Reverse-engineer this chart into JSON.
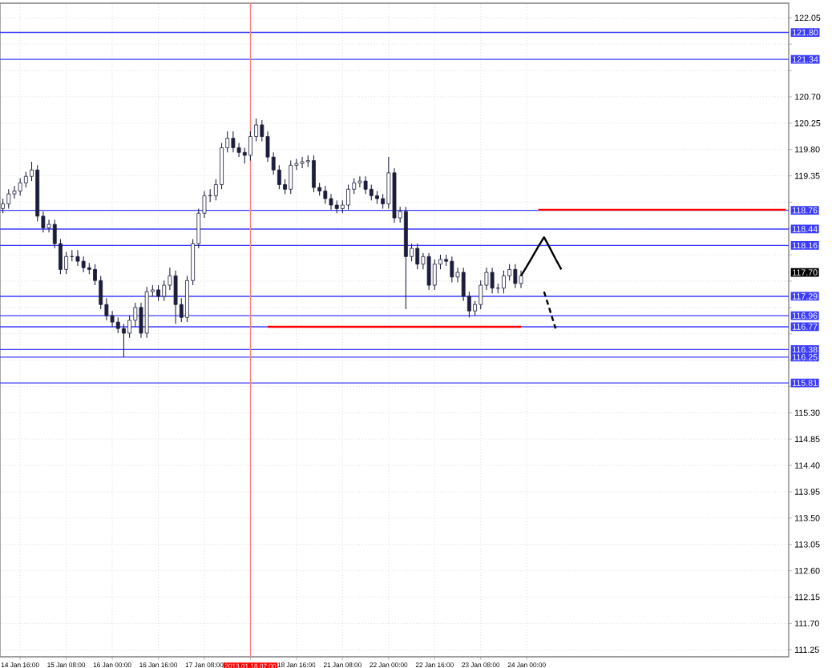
{
  "chart_data": {
    "type": "candlestick",
    "color": "#1c1c3c",
    "grid": true,
    "categories": [
      null,
      null,
      null,
      "14 Jan 16:00",
      null,
      null,
      null,
      null,
      null,
      null,
      null,
      "15 Jan 08:00",
      null,
      null,
      null,
      null,
      null,
      null,
      null,
      "16 Jan 00:00",
      null,
      null,
      null,
      null,
      null,
      null,
      null,
      "16 Jan 16:00",
      null,
      null,
      null,
      null,
      null,
      null,
      null,
      "17 Jan 08:00",
      null,
      null,
      null,
      null,
      null,
      null,
      null,
      "2013.01.18 07:00",
      null,
      null,
      null,
      null,
      null,
      null,
      null,
      "18 Jan 16:00",
      null,
      null,
      null,
      null,
      null,
      null,
      null,
      "21 Jan 08:00",
      null,
      null,
      null,
      null,
      null,
      null,
      null,
      "22 Jan 00:00",
      null,
      null,
      null,
      null,
      null,
      null,
      null,
      "22 Jan 16:00",
      null,
      null,
      null,
      null,
      null,
      null,
      null,
      "23 Jan 08:00",
      null,
      null,
      null,
      null,
      null,
      null,
      null,
      "24 Jan 00:00",
      null,
      null,
      null,
      null,
      null,
      null,
      null,
      null,
      null,
      null,
      null,
      null,
      null,
      null,
      null,
      null,
      null,
      null,
      null,
      null,
      null,
      null,
      null,
      null,
      null,
      null,
      null,
      null,
      null,
      null,
      null,
      null,
      null,
      null,
      null,
      null,
      null,
      null,
      null,
      null,
      null,
      null,
      null,
      null,
      null
    ],
    "ohlc": [
      [
        118.79,
        118.96,
        118.71,
        118.87
      ],
      [
        118.87,
        119.12,
        118.79,
        119.04
      ],
      [
        119.04,
        119.18,
        118.96,
        119.09
      ],
      [
        119.09,
        119.31,
        119.01,
        119.23
      ],
      [
        119.23,
        119.42,
        119.15,
        119.34
      ],
      [
        119.34,
        119.59,
        119.26,
        119.45
      ],
      [
        119.45,
        119.53,
        118.57,
        118.66
      ],
      [
        118.66,
        118.74,
        118.38,
        118.46
      ],
      [
        118.46,
        118.6,
        118.38,
        118.52
      ],
      [
        118.52,
        118.6,
        118.11,
        118.19
      ],
      [
        118.19,
        118.27,
        117.67,
        117.75
      ],
      [
        117.75,
        118.05,
        117.67,
        117.97
      ],
      [
        117.97,
        118.08,
        117.89,
        117.97
      ],
      [
        117.97,
        118.08,
        117.81,
        117.89
      ],
      [
        117.89,
        117.97,
        117.7,
        117.78
      ],
      [
        117.78,
        117.86,
        117.67,
        117.75
      ],
      [
        117.75,
        117.84,
        117.48,
        117.56
      ],
      [
        117.56,
        117.64,
        117.07,
        117.15
      ],
      [
        117.15,
        117.26,
        116.88,
        116.96
      ],
      [
        116.96,
        117.04,
        116.77,
        116.85
      ],
      [
        116.85,
        116.93,
        116.66,
        116.74
      ],
      [
        116.74,
        116.82,
        116.25,
        116.66
      ],
      [
        116.66,
        116.96,
        116.58,
        116.88
      ],
      [
        116.88,
        117.18,
        116.77,
        117.1
      ],
      [
        117.1,
        117.18,
        116.58,
        116.66
      ],
      [
        116.66,
        117.45,
        116.58,
        117.37
      ],
      [
        117.37,
        117.48,
        117.29,
        117.4
      ],
      [
        117.4,
        117.48,
        117.21,
        117.29
      ],
      [
        117.29,
        117.56,
        117.21,
        117.48
      ],
      [
        117.48,
        117.78,
        117.4,
        117.64
      ],
      [
        117.64,
        117.73,
        116.82,
        117.15
      ],
      [
        117.15,
        117.26,
        116.85,
        116.93
      ],
      [
        116.93,
        117.64,
        116.85,
        117.56
      ],
      [
        117.56,
        118.27,
        117.48,
        118.19
      ],
      [
        118.19,
        118.79,
        118.11,
        118.71
      ],
      [
        118.71,
        119.09,
        118.63,
        119.01
      ],
      [
        119.01,
        119.12,
        118.9,
        119.01
      ],
      [
        119.01,
        119.29,
        118.93,
        119.2
      ],
      [
        119.2,
        119.91,
        119.12,
        119.83
      ],
      [
        119.83,
        120.11,
        119.75,
        119.99
      ],
      [
        119.99,
        120.11,
        119.75,
        119.83
      ],
      [
        119.83,
        119.91,
        119.67,
        119.75
      ],
      [
        119.75,
        119.83,
        119.56,
        119.7
      ],
      [
        119.7,
        120.11,
        119.61,
        120.02
      ],
      [
        120.02,
        120.33,
        119.94,
        120.22
      ],
      [
        120.22,
        120.3,
        119.94,
        120.02
      ],
      [
        120.02,
        120.11,
        119.59,
        119.67
      ],
      [
        119.67,
        119.75,
        119.37,
        119.45
      ],
      [
        119.45,
        119.53,
        119.12,
        119.2
      ],
      [
        119.2,
        119.29,
        119.04,
        119.12
      ],
      [
        119.12,
        119.61,
        119.04,
        119.53
      ],
      [
        119.53,
        119.64,
        119.45,
        119.56
      ],
      [
        119.56,
        119.67,
        119.48,
        119.59
      ],
      [
        119.59,
        119.7,
        119.5,
        119.61
      ],
      [
        119.61,
        119.7,
        119.07,
        119.15
      ],
      [
        119.15,
        119.23,
        119.01,
        119.09
      ],
      [
        119.09,
        119.18,
        118.87,
        118.96
      ],
      [
        118.96,
        119.04,
        118.77,
        118.85
      ],
      [
        118.85,
        118.93,
        118.71,
        118.79
      ],
      [
        118.79,
        118.93,
        118.71,
        118.85
      ],
      [
        118.85,
        119.2,
        118.77,
        119.12
      ],
      [
        119.12,
        119.31,
        119.04,
        119.23
      ],
      [
        119.23,
        119.34,
        119.15,
        119.26
      ],
      [
        119.26,
        119.34,
        119.04,
        119.12
      ],
      [
        119.12,
        119.2,
        118.93,
        119.01
      ],
      [
        119.01,
        119.09,
        118.87,
        118.96
      ],
      [
        118.96,
        119.04,
        118.79,
        118.87
      ],
      [
        118.87,
        119.67,
        118.79,
        119.4
      ],
      [
        119.4,
        119.48,
        118.55,
        118.63
      ],
      [
        118.63,
        118.82,
        118.55,
        118.74
      ],
      [
        118.74,
        118.82,
        117.07,
        117.97
      ],
      [
        117.97,
        118.19,
        117.89,
        118.11
      ],
      [
        118.11,
        118.19,
        117.75,
        117.84
      ],
      [
        117.84,
        118.03,
        117.75,
        117.97
      ],
      [
        117.97,
        118.03,
        117.4,
        117.48
      ],
      [
        117.48,
        117.92,
        117.4,
        117.84
      ],
      [
        117.84,
        118.0,
        117.75,
        117.92
      ],
      [
        117.92,
        118.0,
        117.81,
        117.89
      ],
      [
        117.89,
        117.97,
        117.53,
        117.62
      ],
      [
        117.62,
        117.78,
        117.53,
        117.7
      ],
      [
        117.7,
        117.78,
        117.21,
        117.29
      ],
      [
        117.29,
        117.37,
        116.93,
        117.04
      ],
      [
        117.04,
        117.21,
        116.96,
        117.15
      ],
      [
        117.15,
        117.56,
        117.07,
        117.48
      ],
      [
        117.48,
        117.78,
        117.4,
        117.7
      ],
      [
        117.7,
        117.78,
        117.34,
        117.43
      ],
      [
        117.43,
        117.51,
        117.34,
        117.43
      ],
      [
        117.43,
        117.73,
        117.34,
        117.64
      ],
      [
        117.64,
        117.84,
        117.56,
        117.75
      ],
      [
        117.75,
        117.84,
        117.43,
        117.51
      ],
      [
        117.51,
        117.73,
        117.43,
        117.64
      ],
      null,
      null,
      null,
      null,
      null,
      null,
      null,
      null,
      null,
      null,
      null,
      null,
      null,
      null,
      null,
      null,
      null,
      null,
      null,
      null,
      null,
      null,
      null,
      null,
      null,
      null,
      null,
      null,
      null,
      null,
      null,
      null,
      null,
      null,
      null,
      null,
      null,
      null,
      null,
      null,
      null,
      null,
      null,
      null,
      null,
      null
    ],
    "series": [
      {
        "type": "line",
        "color": "#ff0000",
        "line_style": "solid",
        "values": [
          null,
          null,
          null,
          null,
          null,
          null,
          null,
          null,
          null,
          null,
          null,
          null,
          null,
          null,
          null,
          null,
          null,
          null,
          null,
          null,
          null,
          null,
          null,
          null,
          null,
          null,
          null,
          null,
          null,
          null,
          null,
          null,
          null,
          null,
          null,
          null,
          null,
          null,
          null,
          null,
          null,
          null,
          null,
          null,
          null,
          null,
          null,
          null,
          null,
          null,
          null,
          null,
          null,
          null,
          null,
          null,
          null,
          null,
          null,
          null,
          null,
          null,
          null,
          null,
          null,
          null,
          null,
          null,
          null,
          null,
          null,
          null,
          null,
          null,
          null,
          null,
          null,
          null,
          null,
          null,
          null,
          null,
          null,
          null,
          null,
          null,
          null,
          null,
          null,
          null,
          null,
          null,
          null,
          118.77,
          118.77,
          118.77,
          118.77,
          118.77,
          118.77,
          118.77,
          118.77,
          118.77,
          118.77,
          118.77,
          118.77,
          118.77,
          118.77,
          118.77,
          118.77,
          118.77,
          118.77,
          118.77,
          118.77,
          118.77,
          118.77,
          118.77,
          118.77,
          118.77,
          118.77,
          118.77,
          118.77,
          118.77,
          118.77,
          118.77,
          118.77,
          118.77,
          118.77,
          118.77,
          118.77,
          118.77,
          118.77,
          118.77,
          118.77,
          118.77,
          118.77,
          118.77,
          118.77
        ]
      },
      {
        "type": "line",
        "color": "#ff0000",
        "line_style": "solid",
        "values": [
          null,
          null,
          null,
          null,
          null,
          null,
          null,
          null,
          null,
          null,
          null,
          null,
          null,
          null,
          null,
          null,
          null,
          null,
          null,
          null,
          null,
          null,
          null,
          null,
          null,
          null,
          null,
          null,
          null,
          null,
          null,
          null,
          null,
          null,
          null,
          null,
          null,
          null,
          null,
          null,
          null,
          null,
          null,
          null,
          null,
          null,
          116.77,
          116.77,
          116.77,
          116.77,
          116.77,
          116.77,
          116.77,
          116.77,
          116.77,
          116.77,
          116.77,
          116.77,
          116.77,
          116.77,
          116.77,
          116.77,
          116.77,
          116.77,
          116.77,
          116.77,
          116.77,
          116.77,
          116.77,
          116.77,
          116.77,
          116.77,
          116.77,
          116.77,
          116.77,
          116.77,
          116.77,
          116.77,
          116.77,
          116.77,
          116.77,
          116.77,
          116.77,
          116.77,
          116.77,
          116.77,
          116.77,
          116.77,
          116.77,
          116.77,
          116.77,
          null,
          null,
          null,
          null,
          null,
          null,
          null,
          null,
          null,
          null,
          null,
          null,
          null,
          null,
          null,
          null,
          null,
          null,
          null,
          null,
          null,
          null,
          null,
          null,
          null,
          null,
          null,
          null,
          null,
          null,
          null,
          null,
          null,
          null,
          null,
          null,
          null,
          null,
          null,
          null,
          null,
          null,
          null,
          null,
          null,
          null
        ]
      },
      {
        "type": "line",
        "color": "#000000",
        "line_style": "solid",
        "values": [
          null,
          null,
          null,
          null,
          null,
          null,
          null,
          null,
          null,
          null,
          null,
          null,
          null,
          null,
          null,
          null,
          null,
          null,
          null,
          null,
          null,
          null,
          null,
          null,
          null,
          null,
          null,
          null,
          null,
          null,
          null,
          null,
          null,
          null,
          null,
          null,
          null,
          null,
          null,
          null,
          null,
          null,
          null,
          null,
          null,
          null,
          null,
          null,
          null,
          null,
          null,
          null,
          null,
          null,
          null,
          null,
          null,
          null,
          null,
          null,
          null,
          null,
          null,
          null,
          null,
          null,
          null,
          null,
          null,
          null,
          null,
          null,
          null,
          null,
          null,
          null,
          null,
          null,
          null,
          null,
          null,
          null,
          null,
          null,
          null,
          null,
          null,
          null,
          null,
          null,
          117.64,
          117.8,
          117.97,
          118.14,
          118.3,
          118.12,
          117.93,
          117.75,
          null,
          null,
          null,
          null,
          null,
          null,
          null,
          null,
          null,
          null,
          null,
          null,
          null,
          null,
          null,
          null,
          null,
          null,
          null,
          null,
          null,
          null,
          null,
          null,
          null,
          null,
          null,
          null,
          null,
          null,
          null,
          null,
          null,
          null,
          null,
          null,
          null,
          null,
          null
        ]
      },
      {
        "type": "line",
        "color": "#000000",
        "line_style": "dashed",
        "values": [
          null,
          null,
          null,
          null,
          null,
          null,
          null,
          null,
          null,
          null,
          null,
          null,
          null,
          null,
          null,
          null,
          null,
          null,
          null,
          null,
          null,
          null,
          null,
          null,
          null,
          null,
          null,
          null,
          null,
          null,
          null,
          null,
          null,
          null,
          null,
          null,
          null,
          null,
          null,
          null,
          null,
          null,
          null,
          null,
          null,
          null,
          null,
          null,
          null,
          null,
          null,
          null,
          null,
          null,
          null,
          null,
          null,
          null,
          null,
          null,
          null,
          null,
          null,
          null,
          null,
          null,
          null,
          null,
          null,
          null,
          null,
          null,
          null,
          null,
          null,
          null,
          null,
          null,
          null,
          null,
          null,
          null,
          null,
          null,
          null,
          null,
          null,
          null,
          null,
          null,
          null,
          null,
          null,
          null,
          117.37,
          117.06,
          116.74,
          null,
          null,
          null,
          null,
          null,
          null,
          null,
          null,
          null,
          null,
          null,
          null,
          null,
          null,
          null,
          null,
          null,
          null,
          null,
          null,
          null,
          null,
          null,
          null,
          null,
          null,
          null,
          null,
          null,
          null,
          null,
          null,
          null,
          null,
          null,
          null,
          null,
          null,
          null,
          null
        ]
      }
    ],
    "ylim": [
      111.13,
      122.3
    ],
    "yticks": [
      111.25,
      {
        "value": 111.7,
        "label": "111.70"
      },
      112.15,
      {
        "value": 112.6,
        "label": "112.60"
      },
      113.05,
      {
        "value": 113.5,
        "label": "113.50"
      },
      113.95,
      {
        "value": 114.4,
        "label": "114.40"
      },
      114.85,
      {
        "value": 115.3,
        "label": "115.30"
      },
      {
        "value": 115.75,
        "label": null
      },
      {
        "value": 116.2,
        "label": null
      },
      {
        "value": 116.65,
        "label": null
      },
      {
        "value": 117.1,
        "label": null
      },
      {
        "value": 117.55,
        "label": null
      },
      {
        "value": 118.0,
        "label": null
      },
      {
        "value": 118.45,
        "label": null
      },
      {
        "value": 118.9,
        "label": null
      },
      119.35,
      {
        "value": 119.8,
        "label": "119.80"
      },
      120.25,
      {
        "value": 120.7,
        "label": "120.70"
      },
      {
        "value": 121.15,
        "label": null
      },
      {
        "value": 121.6,
        "label": null
      },
      122.05
    ],
    "ref_lines": [
      {
        "axis": "y",
        "value": 121.8,
        "label": "121.80",
        "color": "#3c3cff"
      },
      {
        "axis": "y",
        "value": 121.34,
        "label": "121.34",
        "color": "#3c3cff"
      },
      {
        "axis": "y",
        "value": 118.76,
        "label": "118.76",
        "color": "#3c3cff"
      },
      {
        "axis": "y",
        "value": 118.44,
        "label": "118.44",
        "color": "#3c3cff"
      },
      {
        "axis": "y",
        "value": 118.16,
        "label": "118.16",
        "color": "#3c3cff"
      },
      {
        "axis": "y",
        "value": 117.29,
        "label": "117.29",
        "color": "#3c3cff"
      },
      {
        "axis": "y",
        "value": 116.96,
        "label": "116.96",
        "color": "#3c3cff"
      },
      {
        "axis": "y",
        "value": 116.77,
        "label": "116.77",
        "color": "#3c3cff"
      },
      {
        "axis": "y",
        "value": 116.38,
        "label": "116.38",
        "color": "#3c3cff"
      },
      {
        "axis": "y",
        "value": 116.25,
        "label": "116.25",
        "color": "#3c3cff"
      },
      {
        "axis": "y",
        "value": 115.81,
        "label": "115.81",
        "color": "#3c3cff"
      },
      {
        "axis": "x",
        "value": "2013.01.18 07:00",
        "color": "#ff8080"
      }
    ],
    "annotations": [
      {
        "text": "117.70",
        "y": 117.7
      }
    ]
  }
}
